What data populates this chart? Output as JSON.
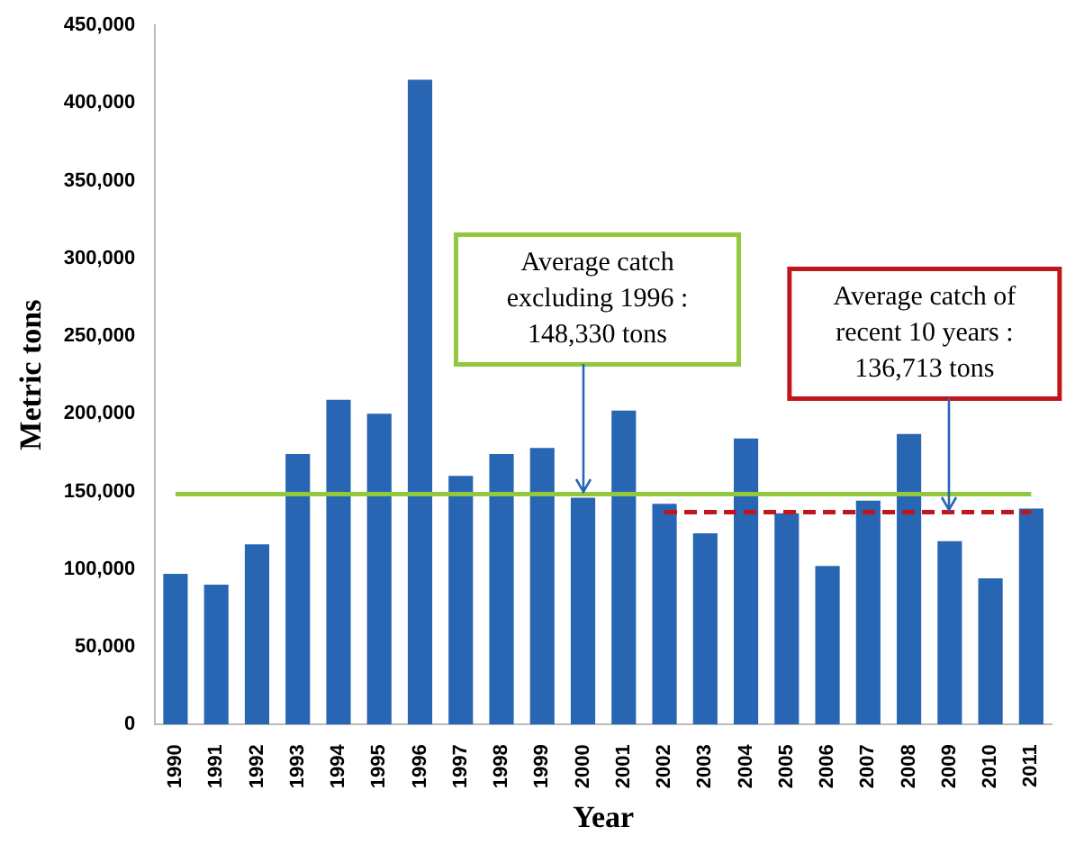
{
  "chart_data": {
    "type": "bar",
    "xlabel": "Year",
    "ylabel": "Metric tons",
    "categories": [
      "1990",
      "1991",
      "1992",
      "1993",
      "1994",
      "1995",
      "1996",
      "1997",
      "1998",
      "1999",
      "2000",
      "2001",
      "2002",
      "2003",
      "2004",
      "2005",
      "2006",
      "2007",
      "2008",
      "2009",
      "2010",
      "2011"
    ],
    "series": [
      {
        "color": "#2866b4",
        "values": [
          97000,
          90000,
          116000,
          174000,
          209000,
          200000,
          415000,
          160000,
          174000,
          178000,
          146000,
          202000,
          142000,
          123000,
          184000,
          136000,
          102000,
          144000,
          187000,
          118000,
          94000,
          139000
        ]
      },
      {
        "type": "line",
        "color": "#92c83e",
        "line_style": "solid",
        "values": [
          148330,
          148330,
          148330,
          148330,
          148330,
          148330,
          148330,
          148330,
          148330,
          148330,
          148330,
          148330,
          148330,
          148330,
          148330,
          148330,
          148330,
          148330,
          148330,
          148330,
          148330,
          148330
        ]
      },
      {
        "type": "line",
        "color": "#c0151c",
        "line_style": "dashed",
        "values": [
          null,
          null,
          null,
          null,
          null,
          null,
          null,
          null,
          null,
          null,
          null,
          null,
          136713,
          136713,
          136713,
          136713,
          136713,
          136713,
          136713,
          136713,
          136713,
          136713
        ]
      }
    ],
    "ylim": [
      0,
      450000
    ],
    "yticks": [
      0,
      {
        "value": 50000,
        "label": "50,000"
      },
      {
        "value": 100000,
        "label": "100,000"
      },
      {
        "value": 150000,
        "label": "150,000"
      },
      {
        "value": 200000,
        "label": "200,000"
      },
      {
        "value": 250000,
        "label": "250,000"
      },
      {
        "value": 300000,
        "label": "300,000"
      },
      {
        "value": 350000,
        "label": "350,000"
      },
      {
        "value": 400000,
        "label": "400,000"
      },
      {
        "value": 450000,
        "label": "450,000"
      }
    ],
    "annotations": [
      {
        "text": "Average catch excluding 1996 : 148,330 tons",
        "x": "2000",
        "y": 148330
      },
      {
        "text": "Average catch of recent 10 years : 136,713 tons",
        "x": "2009",
        "y": 136713
      }
    ],
    "grid": false,
    "legend": false,
    "marker": "none"
  }
}
